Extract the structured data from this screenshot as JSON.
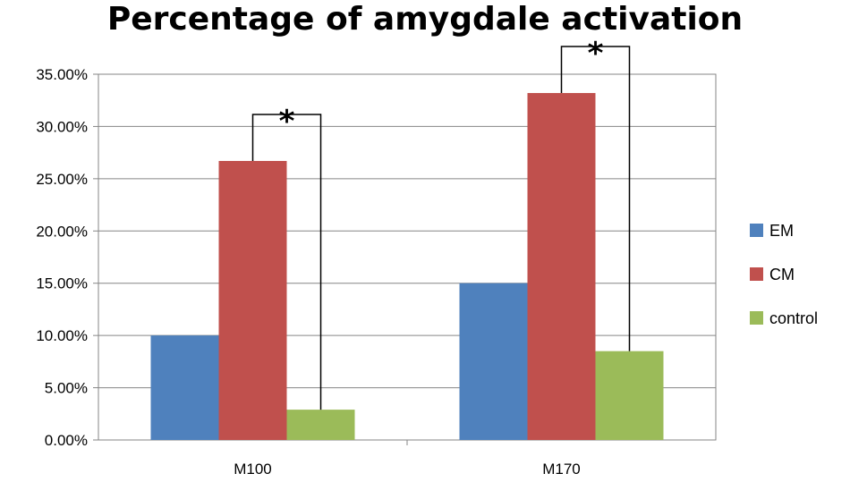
{
  "chart_data": {
    "type": "bar",
    "title": "Percentage of amygdale activation",
    "xlabel": "",
    "ylabel": "",
    "categories": [
      "M100",
      "M170"
    ],
    "series": [
      {
        "name": "EM",
        "values": [
          10.0,
          15.0
        ],
        "color": "#4f81bd"
      },
      {
        "name": "CM",
        "values": [
          26.7,
          33.2
        ],
        "color": "#c0504d"
      },
      {
        "name": "control",
        "values": [
          2.9,
          8.5
        ],
        "color": "#9bbb59"
      }
    ],
    "ylim": [
      0,
      35
    ],
    "ytick_step": 5,
    "ytick_labels": [
      "0.00%",
      "5.00%",
      "10.00%",
      "15.00%",
      "20.00%",
      "25.00%",
      "30.00%",
      "35.00%"
    ],
    "grid": true,
    "legend_position": "right",
    "annotations": [
      {
        "text": "*",
        "category": "M100",
        "between": [
          "CM",
          "control"
        ]
      },
      {
        "text": "*",
        "category": "M170",
        "between": [
          "CM",
          "control"
        ]
      }
    ]
  }
}
